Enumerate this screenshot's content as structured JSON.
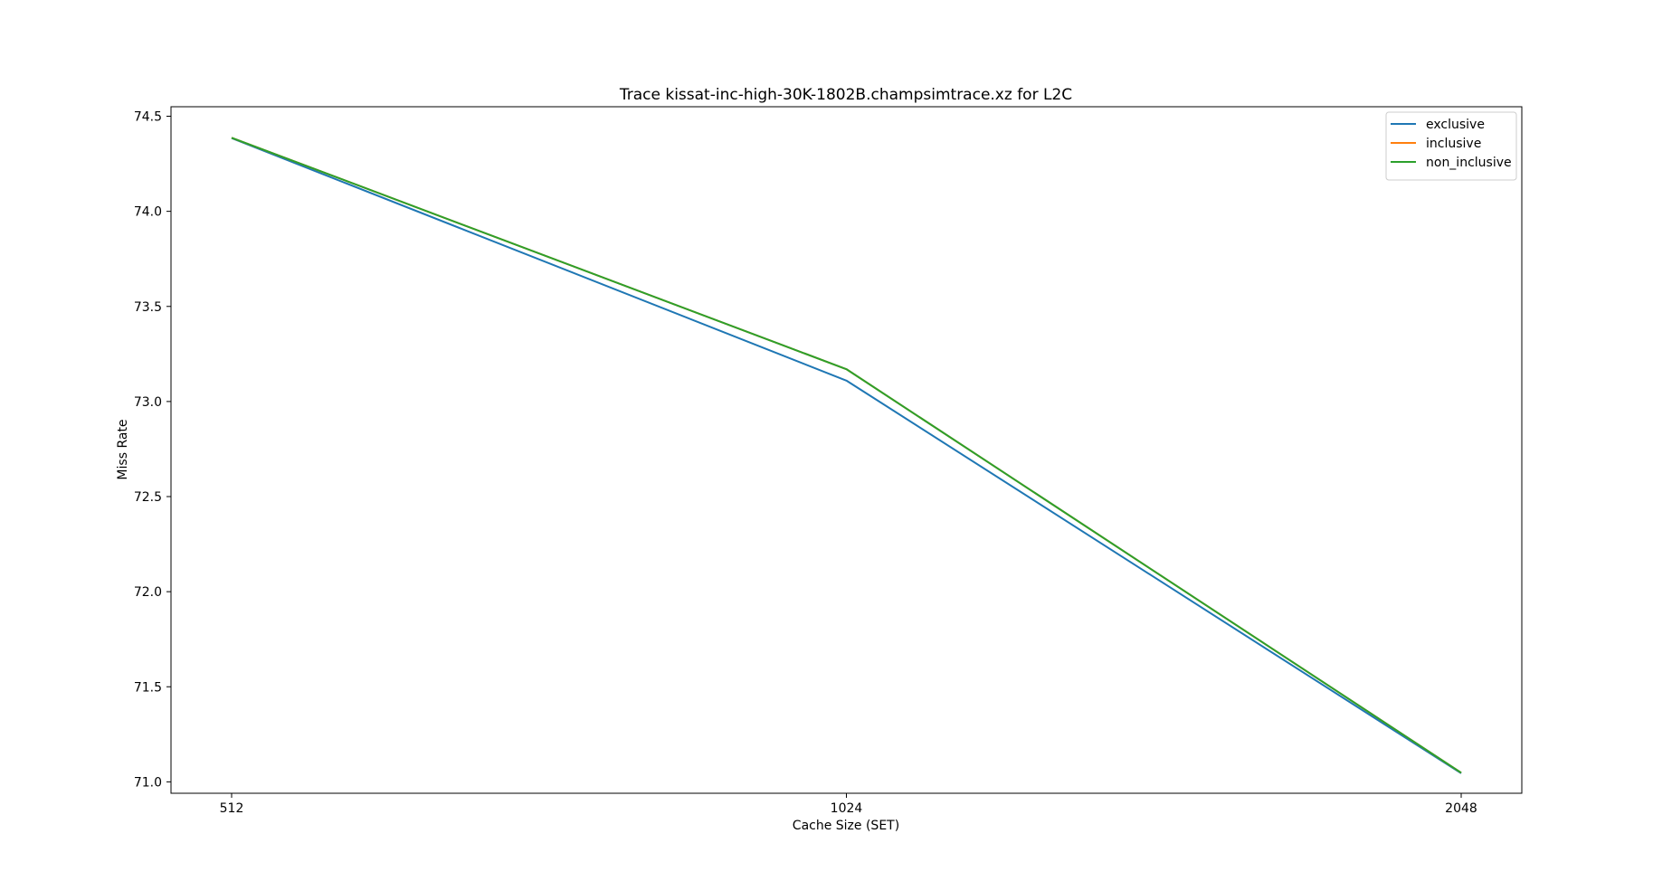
{
  "chart_data": {
    "type": "line",
    "title": "Trace kissat-inc-high-30K-1802B.champsimtrace.xz for L2C",
    "xlabel": "Cache Size (SET)",
    "ylabel": "Miss Rate",
    "x": [
      512,
      1024,
      2048
    ],
    "x_tick_labels": [
      "512",
      "1024",
      "2048"
    ],
    "y_ticks": [
      71.0,
      71.5,
      72.0,
      72.5,
      73.0,
      73.5,
      74.0,
      74.5
    ],
    "y_tick_labels": [
      "71.0",
      "71.5",
      "72.0",
      "72.5",
      "73.0",
      "73.5",
      "74.0",
      "74.5"
    ],
    "ylim": [
      70.94,
      74.55
    ],
    "grid": false,
    "legend_position": "top-right",
    "series": [
      {
        "name": "exclusive",
        "color": "#1f77b4",
        "values": [
          74.385,
          73.11,
          71.045
        ]
      },
      {
        "name": "inclusive",
        "color": "#ff7f0e",
        "values": [
          74.387,
          73.17,
          71.048
        ]
      },
      {
        "name": "non_inclusive",
        "color": "#2ca02c",
        "values": [
          74.387,
          73.17,
          71.048
        ]
      }
    ]
  }
}
